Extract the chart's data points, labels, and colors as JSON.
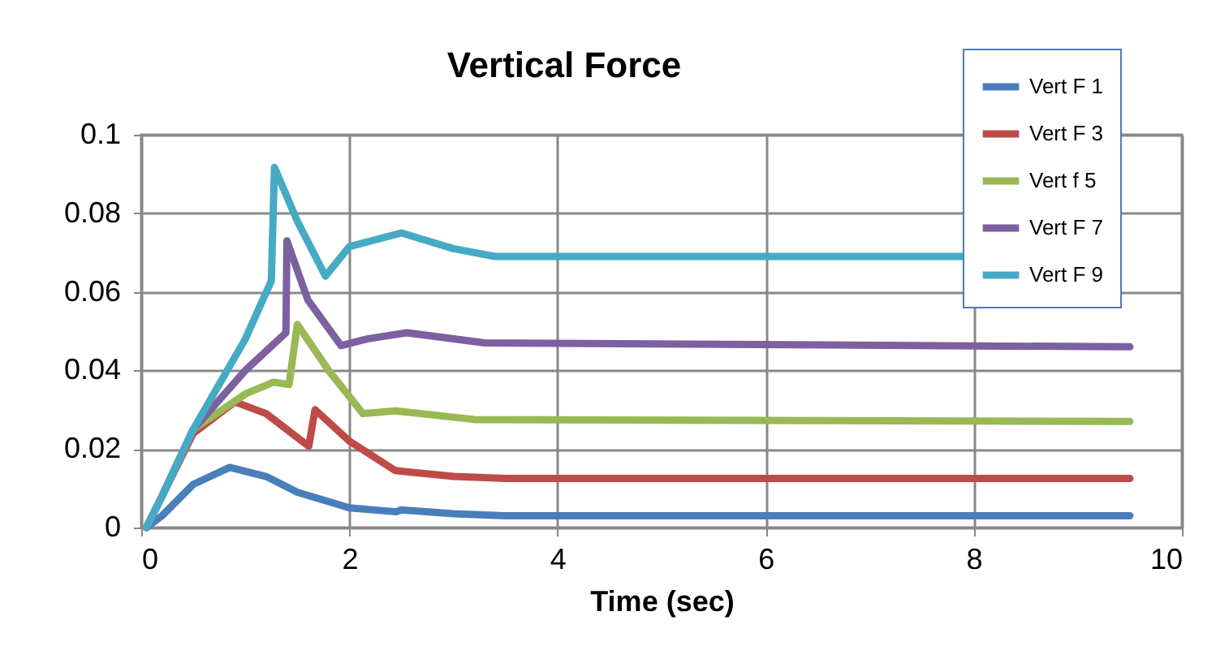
{
  "chart_data": {
    "type": "line",
    "title": "Vertical Force",
    "xlabel": "Time (sec)",
    "xlim": [
      0,
      10
    ],
    "xticks": [
      0,
      2,
      4,
      6,
      8,
      10
    ],
    "ylim": [
      0,
      0.1
    ],
    "yticks": [
      0,
      0.02,
      0.04,
      0.06,
      0.08,
      0.1
    ],
    "grid": true,
    "legend": "top right",
    "line_style": "solid",
    "marker": "none",
    "series": [
      {
        "name": "Vert F 1",
        "color": "#4a7ebb",
        "x": [
          0.05,
          0.2,
          0.5,
          0.85,
          1.2,
          1.5,
          2,
          2.45,
          2.5,
          3,
          3.5,
          9.5
        ],
        "values": [
          0,
          0.003,
          0.011,
          0.0153,
          0.013,
          0.009,
          0.005,
          0.004,
          0.0045,
          0.0035,
          0.003,
          0.003
        ]
      },
      {
        "name": "Vert F 3",
        "color": "#be4b48",
        "x": [
          0.05,
          0.2,
          0.5,
          0.9,
          1.2,
          1.61,
          1.67,
          2.0,
          2.44,
          3.0,
          3.5,
          9.5
        ],
        "values": [
          0,
          0.008,
          0.024,
          0.032,
          0.029,
          0.0207,
          0.03,
          0.022,
          0.0145,
          0.013,
          0.0125,
          0.0125
        ]
      },
      {
        "name": "Vert f 5",
        "color": "#98b954",
        "x": [
          0.05,
          0.2,
          0.5,
          1.0,
          1.27,
          1.42,
          1.5,
          1.8,
          2.13,
          2.44,
          3.2,
          9.5
        ],
        "values": [
          0,
          0.008,
          0.025,
          0.034,
          0.037,
          0.0364,
          0.0517,
          0.04,
          0.029,
          0.0297,
          0.0275,
          0.027
        ]
      },
      {
        "name": "Vert F 7",
        "color": "#7d60a0",
        "x": [
          0.05,
          0.2,
          0.5,
          1.0,
          1.39,
          1.4,
          1.6,
          1.92,
          2.17,
          2.55,
          3.3,
          9.5
        ],
        "values": [
          0,
          0.008,
          0.025,
          0.04,
          0.0496,
          0.073,
          0.058,
          0.0463,
          0.048,
          0.0496,
          0.047,
          0.046
        ]
      },
      {
        "name": "Vert F 9",
        "color": "#46aac5",
        "x": [
          0.05,
          0.2,
          0.5,
          1.0,
          1.25,
          1.28,
          1.5,
          1.77,
          2.0,
          2.5,
          3.0,
          3.4,
          7.9
        ],
        "values": [
          0,
          0.008,
          0.025,
          0.048,
          0.0628,
          0.0917,
          0.078,
          0.064,
          0.0715,
          0.075,
          0.071,
          0.069,
          0.069
        ]
      }
    ]
  }
}
